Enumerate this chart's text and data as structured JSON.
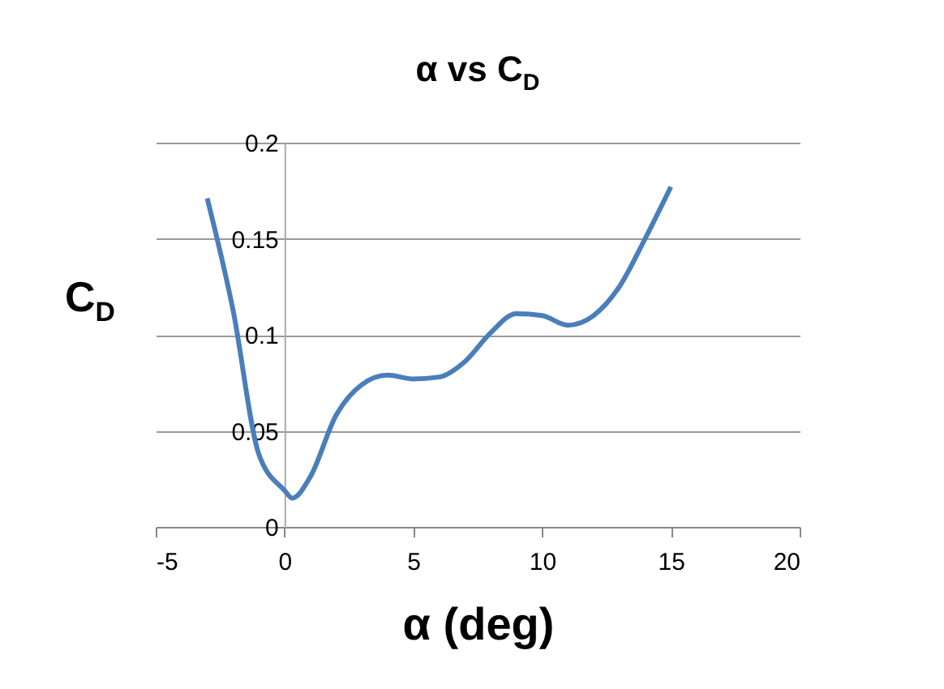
{
  "chart_data": {
    "type": "line",
    "title": "α vs C$_{D}$",
    "xlabel": "α  (deg)",
    "ylabel": "C$_{D}$",
    "x": [
      -3,
      -2,
      -1,
      0,
      0.3,
      1,
      2,
      3,
      4,
      5,
      6,
      7,
      8,
      9,
      10,
      11,
      12,
      13,
      14,
      15
    ],
    "series": [
      {
        "color": "#4a7ebb",
        "values": [
          0.171,
          0.113,
          0.038,
          0.019,
          0.015,
          0.026,
          0.058,
          0.074,
          0.079,
          0.077,
          0.078,
          0.086,
          0.101,
          0.111,
          0.11,
          0.105,
          0.11,
          0.125,
          0.15,
          0.177
        ]
      }
    ],
    "xlim": [
      -5,
      20
    ],
    "xticks": [
      -5,
      0,
      5,
      10,
      15,
      20
    ],
    "ylim": [
      0,
      0.2
    ],
    "yticks": [
      0,
      0.05,
      0.1,
      0.15,
      0.2
    ],
    "grid": "y",
    "marker": "none",
    "line_style": "solid",
    "legend": false
  }
}
